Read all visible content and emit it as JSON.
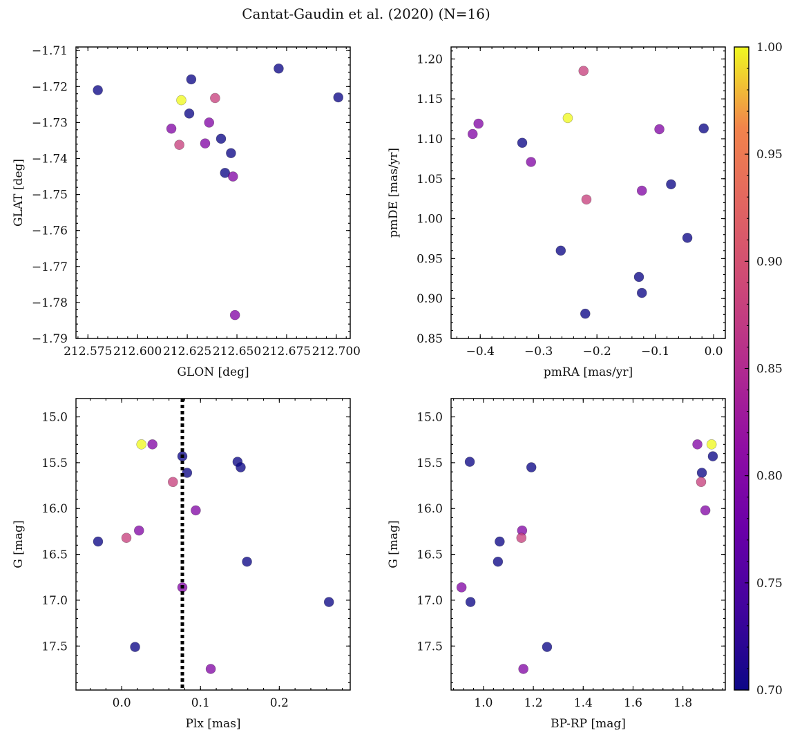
{
  "figure": {
    "title": "Cantat-Gaudin et al. (2020) (N=16)"
  },
  "colorbar": {
    "min": 0.7,
    "max": 1.0,
    "ticks": [
      0.7,
      0.75,
      0.8,
      0.85,
      0.9,
      0.95,
      1.0
    ],
    "tick_labels": [
      "0.70",
      "0.75",
      "0.80",
      "0.85",
      "0.90",
      "0.95",
      "1.00"
    ],
    "colormap": "plasma"
  },
  "chart_data": [
    {
      "id": "glon-glat",
      "type": "scatter",
      "xlabel": "GLON [deg]",
      "ylabel": "GLAT [deg]",
      "xlim": [
        212.569,
        212.707
      ],
      "ylim": [
        -1.79,
        -1.709
      ],
      "xticks": [
        212.575,
        212.6,
        212.625,
        212.65,
        212.675,
        212.7
      ],
      "xtick_labels": [
        "212.575",
        "212.600",
        "212.625",
        "212.650",
        "212.675",
        "212.700"
      ],
      "yticks": [
        -1.79,
        -1.78,
        -1.77,
        -1.76,
        -1.75,
        -1.74,
        -1.73,
        -1.72,
        -1.71
      ],
      "ytick_labels": [
        "−1.79",
        "−1.78",
        "−1.77",
        "−1.76",
        "−1.75",
        "−1.74",
        "−1.73",
        "−1.72",
        "−1.71"
      ],
      "x": [
        212.58,
        212.627,
        212.701,
        212.671,
        212.626,
        212.642,
        212.647,
        212.644,
        212.648,
        212.636,
        212.639,
        212.634,
        212.617,
        212.621,
        212.622,
        212.649
      ],
      "y": [
        -1.721,
        -1.718,
        -1.723,
        -1.715,
        -1.7275,
        -1.7345,
        -1.7385,
        -1.744,
        -1.745,
        -1.73,
        -1.7232,
        -1.7358,
        -1.7317,
        -1.7362,
        -1.7238,
        -1.7835
      ],
      "color_values": [
        0.7,
        0.7,
        0.7,
        0.7,
        0.7,
        0.7,
        0.7,
        0.7,
        0.8,
        0.8,
        0.88,
        0.8,
        0.8,
        0.88,
        1.0,
        0.8
      ]
    },
    {
      "id": "pmra-pmde",
      "type": "scatter",
      "xlabel": "pmRA [mas/yr]",
      "ylabel": "pmDE [mas/yr]",
      "xlim": [
        -0.45,
        0.02
      ],
      "ylim": [
        0.85,
        1.215
      ],
      "xticks": [
        -0.4,
        -0.3,
        -0.2,
        -0.1,
        0.0
      ],
      "xtick_labels": [
        "−0.4",
        "−0.3",
        "−0.2",
        "−0.1",
        "0.0"
      ],
      "yticks": [
        0.85,
        0.9,
        0.95,
        1.0,
        1.05,
        1.1,
        1.15,
        1.2
      ],
      "ytick_labels": [
        "0.85",
        "0.90",
        "0.95",
        "1.00",
        "1.05",
        "1.10",
        "1.15",
        "1.20"
      ],
      "x": [
        -0.328,
        -0.017,
        -0.073,
        -0.045,
        -0.262,
        -0.128,
        -0.123,
        -0.22,
        -0.413,
        -0.403,
        -0.313,
        -0.123,
        -0.093,
        -0.223,
        -0.218,
        -0.25
      ],
      "y": [
        1.095,
        1.113,
        1.043,
        0.976,
        0.96,
        0.927,
        0.907,
        0.881,
        1.106,
        1.119,
        1.071,
        1.035,
        1.112,
        1.185,
        1.024,
        1.126
      ],
      "color_values": [
        0.7,
        0.7,
        0.7,
        0.7,
        0.7,
        0.7,
        0.7,
        0.7,
        0.8,
        0.8,
        0.8,
        0.8,
        0.8,
        0.88,
        0.88,
        1.0
      ]
    },
    {
      "id": "plx-g",
      "type": "scatter",
      "xlabel": "Plx [mas]",
      "ylabel": "G [mag]",
      "xlim": [
        -0.058,
        0.29
      ],
      "ylim": [
        17.98,
        14.8
      ],
      "xticks": [
        0.0,
        0.1,
        0.2
      ],
      "xtick_labels": [
        "0.0",
        "0.1",
        "0.2"
      ],
      "yticks": [
        15.0,
        15.5,
        16.0,
        16.5,
        17.0,
        17.5
      ],
      "ytick_labels": [
        "15.0",
        "15.5",
        "16.0",
        "16.5",
        "17.0",
        "17.5"
      ],
      "vline": 0.077,
      "x": [
        -0.03,
        0.017,
        0.077,
        0.083,
        0.147,
        0.151,
        0.159,
        0.263,
        0.039,
        0.022,
        0.094,
        0.077,
        0.113,
        0.065,
        0.006,
        0.025
      ],
      "y": [
        16.36,
        17.51,
        15.43,
        15.61,
        15.49,
        15.55,
        16.58,
        17.02,
        15.3,
        16.24,
        16.02,
        16.86,
        17.75,
        15.71,
        16.32,
        15.3
      ],
      "color_values": [
        0.7,
        0.7,
        0.7,
        0.7,
        0.7,
        0.7,
        0.7,
        0.7,
        0.8,
        0.8,
        0.8,
        0.8,
        0.8,
        0.88,
        0.88,
        1.0
      ]
    },
    {
      "id": "bprp-g",
      "type": "scatter",
      "xlabel": "BP-RP [mag]",
      "ylabel": "G [mag]",
      "xlim": [
        0.87,
        1.97
      ],
      "ylim": [
        17.98,
        14.8
      ],
      "xticks": [
        1.0,
        1.2,
        1.4,
        1.6,
        1.8
      ],
      "xtick_labels": [
        "1.0",
        "1.2",
        "1.4",
        "1.6",
        "1.8"
      ],
      "yticks": [
        15.0,
        15.5,
        16.0,
        16.5,
        17.0,
        17.5
      ],
      "ytick_labels": [
        "15.0",
        "15.5",
        "16.0",
        "16.5",
        "17.0",
        "17.5"
      ],
      "x": [
        0.945,
        1.192,
        1.065,
        1.058,
        0.948,
        1.255,
        1.876,
        1.92,
        1.858,
        1.155,
        0.912,
        1.16,
        1.89,
        1.152,
        1.873,
        1.915
      ],
      "y": [
        15.49,
        15.55,
        16.36,
        16.58,
        17.02,
        17.51,
        15.61,
        15.43,
        15.3,
        16.24,
        16.86,
        17.75,
        16.02,
        16.32,
        15.71,
        15.3
      ],
      "color_values": [
        0.7,
        0.7,
        0.7,
        0.7,
        0.7,
        0.7,
        0.7,
        0.7,
        0.8,
        0.8,
        0.8,
        0.8,
        0.8,
        0.88,
        0.88,
        1.0
      ]
    }
  ]
}
